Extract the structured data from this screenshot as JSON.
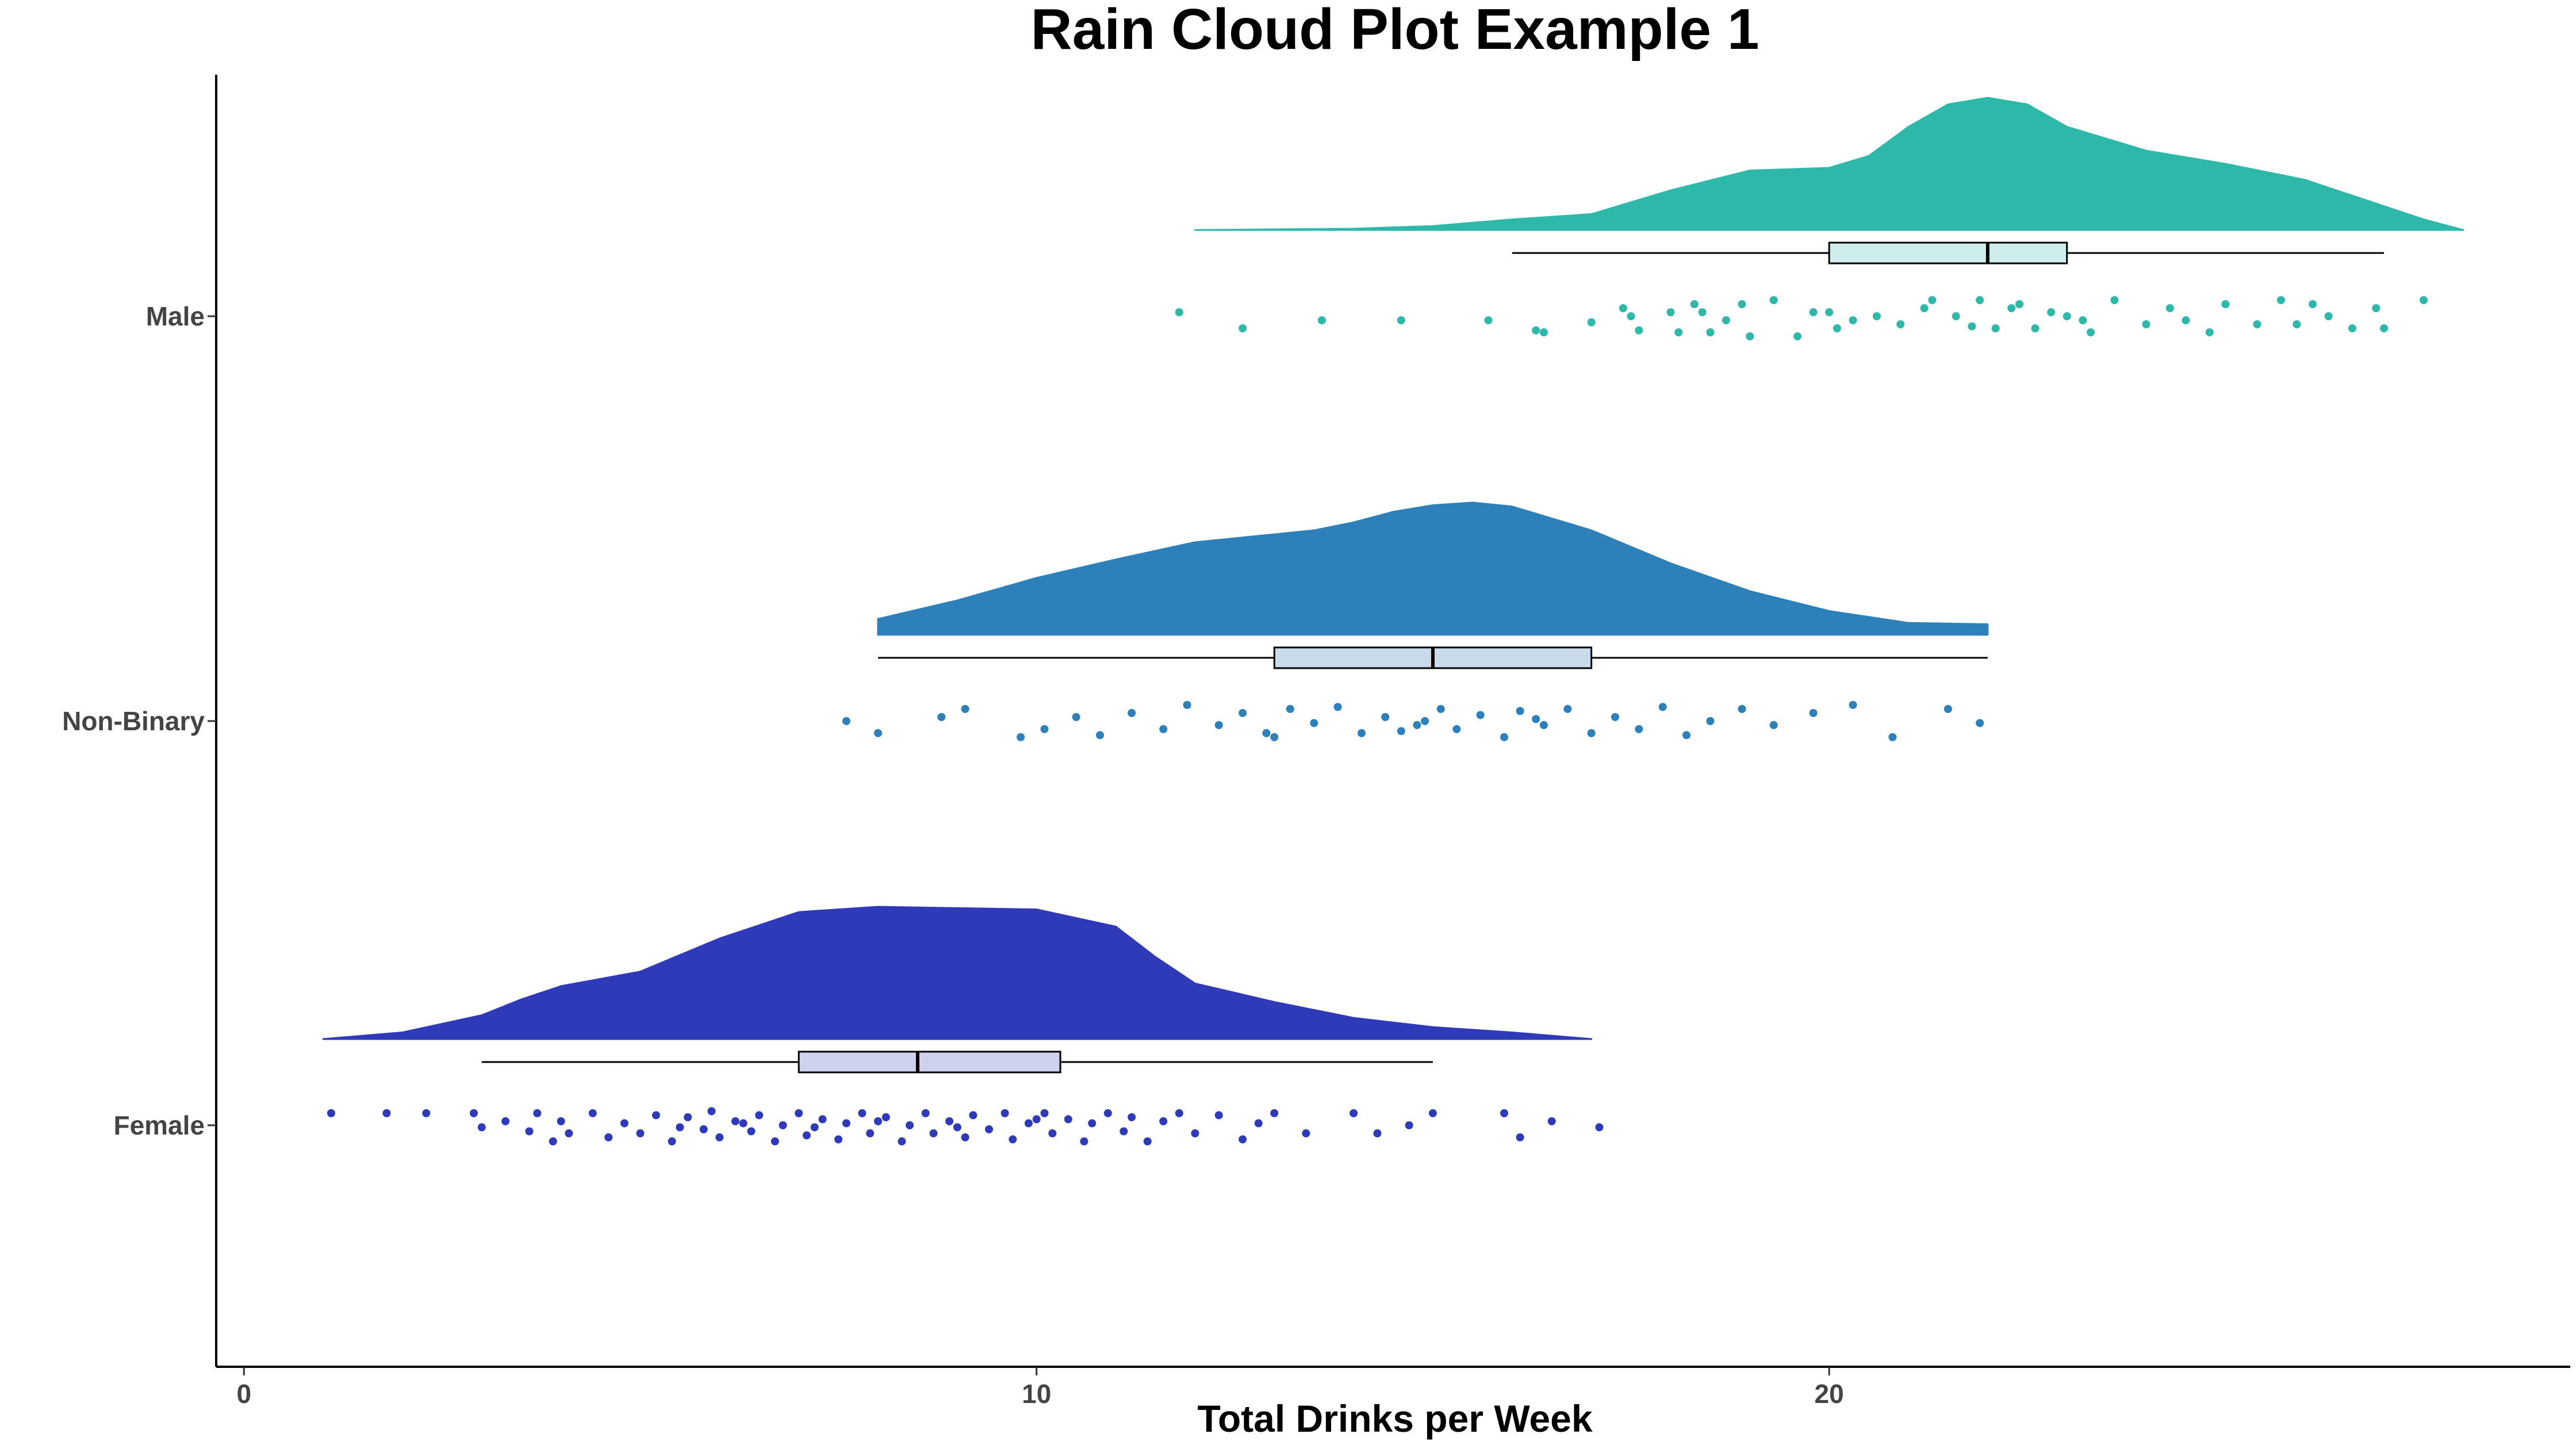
{
  "chart_data": {
    "type": "raincloud",
    "title": "Rain Cloud Plot Example 1",
    "xlabel": "Total Drinks per Week",
    "ylabel": "",
    "xlim": [
      -0.35,
      29.35
    ],
    "xticks": [
      0,
      10,
      20
    ],
    "grid": false,
    "legend": "none",
    "series": [
      {
        "name": "Male",
        "color": "#2eb8a9",
        "box_fill": "#cdeeed",
        "density_range": [
          12.0,
          28.0
        ],
        "density": [
          [
            12.0,
            0.0
          ],
          [
            14.0,
            0.01
          ],
          [
            15.0,
            0.03
          ],
          [
            16.0,
            0.08
          ],
          [
            17.0,
            0.12
          ],
          [
            18.0,
            0.3
          ],
          [
            19.0,
            0.45
          ],
          [
            20.0,
            0.47
          ],
          [
            20.5,
            0.56
          ],
          [
            21.0,
            0.78
          ],
          [
            21.5,
            0.95
          ],
          [
            22.0,
            1.0
          ],
          [
            22.5,
            0.95
          ],
          [
            23.0,
            0.78
          ],
          [
            24.0,
            0.6
          ],
          [
            25.0,
            0.5
          ],
          [
            26.0,
            0.38
          ],
          [
            27.0,
            0.18
          ],
          [
            27.5,
            0.08
          ],
          [
            28.0,
            0.0
          ]
        ],
        "box": {
          "whisker_low": 16.0,
          "q1": 20.0,
          "median": 22.0,
          "q3": 23.0,
          "whisker_high": 27.0
        },
        "points": [
          [
            11.8,
            0.1
          ],
          [
            12.6,
            -0.3
          ],
          [
            13.6,
            -0.1
          ],
          [
            14.6,
            -0.1
          ],
          [
            15.7,
            -0.1
          ],
          [
            16.3,
            -0.35
          ],
          [
            16.4,
            -0.4
          ],
          [
            17.0,
            -0.15
          ],
          [
            17.4,
            0.2
          ],
          [
            17.5,
            0.0
          ],
          [
            17.6,
            -0.35
          ],
          [
            18.1,
            -0.4
          ],
          [
            18.3,
            0.3
          ],
          [
            18.0,
            0.1
          ],
          [
            18.4,
            0.1
          ],
          [
            18.5,
            -0.4
          ],
          [
            18.7,
            -0.1
          ],
          [
            18.9,
            0.3
          ],
          [
            19.0,
            -0.5
          ],
          [
            19.3,
            0.4
          ],
          [
            19.6,
            -0.5
          ],
          [
            19.8,
            0.1
          ],
          [
            20.0,
            0.1
          ],
          [
            20.1,
            -0.3
          ],
          [
            20.3,
            -0.1
          ],
          [
            20.6,
            0.0
          ],
          [
            20.9,
            -0.2
          ],
          [
            21.3,
            0.4
          ],
          [
            21.6,
            0.0
          ],
          [
            21.8,
            -0.25
          ],
          [
            21.9,
            0.4
          ],
          [
            22.1,
            -0.3
          ],
          [
            22.3,
            0.2
          ],
          [
            22.6,
            -0.3
          ],
          [
            22.8,
            0.1
          ],
          [
            23.0,
            0.0
          ],
          [
            23.3,
            -0.4
          ],
          [
            23.6,
            0.4
          ],
          [
            24.0,
            -0.2
          ],
          [
            24.3,
            0.2
          ],
          [
            24.5,
            -0.1
          ],
          [
            24.8,
            -0.4
          ],
          [
            25.0,
            0.3
          ],
          [
            25.4,
            -0.2
          ],
          [
            25.7,
            0.4
          ],
          [
            25.9,
            -0.2
          ],
          [
            26.1,
            0.3
          ],
          [
            26.3,
            0.0
          ],
          [
            26.6,
            -0.3
          ],
          [
            26.9,
            0.2
          ],
          [
            27.5,
            0.4
          ],
          [
            27.0,
            -0.3
          ],
          [
            21.2,
            0.2
          ],
          [
            22.4,
            0.3
          ],
          [
            23.2,
            -0.1
          ]
        ]
      },
      {
        "name": "Non-Binary",
        "color": "#2d80b9",
        "box_fill": "#c9dbeb",
        "density_range": [
          8.0,
          22.0
        ],
        "density": [
          [
            8.0,
            0.12
          ],
          [
            9.0,
            0.26
          ],
          [
            10.0,
            0.43
          ],
          [
            11.0,
            0.57
          ],
          [
            12.0,
            0.7
          ],
          [
            13.0,
            0.76
          ],
          [
            13.5,
            0.79
          ],
          [
            14.0,
            0.85
          ],
          [
            14.5,
            0.93
          ],
          [
            15.0,
            0.98
          ],
          [
            15.5,
            1.0
          ],
          [
            16.0,
            0.97
          ],
          [
            17.0,
            0.79
          ],
          [
            18.0,
            0.54
          ],
          [
            19.0,
            0.33
          ],
          [
            20.0,
            0.18
          ],
          [
            21.0,
            0.09
          ],
          [
            22.0,
            0.08
          ]
        ],
        "box": {
          "whisker_low": 8.0,
          "q1": 13.0,
          "median": 15.0,
          "q3": 17.0,
          "whisker_high": 22.0
        },
        "points": [
          [
            7.6,
            0.0
          ],
          [
            8.0,
            -0.3
          ],
          [
            8.8,
            0.1
          ],
          [
            9.1,
            0.3
          ],
          [
            9.8,
            -0.4
          ],
          [
            10.1,
            -0.2
          ],
          [
            10.5,
            0.1
          ],
          [
            10.8,
            -0.35
          ],
          [
            11.2,
            0.2
          ],
          [
            11.6,
            -0.2
          ],
          [
            11.9,
            0.4
          ],
          [
            12.3,
            -0.1
          ],
          [
            12.6,
            0.2
          ],
          [
            12.9,
            -0.3
          ],
          [
            13.2,
            0.3
          ],
          [
            13.5,
            -0.05
          ],
          [
            13.8,
            0.35
          ],
          [
            14.1,
            -0.3
          ],
          [
            14.4,
            0.1
          ],
          [
            14.6,
            -0.25
          ],
          [
            14.9,
            0.0
          ],
          [
            15.1,
            0.3
          ],
          [
            15.3,
            -0.2
          ],
          [
            15.6,
            0.15
          ],
          [
            15.9,
            -0.4
          ],
          [
            16.1,
            0.25
          ],
          [
            16.4,
            -0.1
          ],
          [
            16.7,
            0.3
          ],
          [
            17.0,
            -0.3
          ],
          [
            17.3,
            0.1
          ],
          [
            17.6,
            -0.2
          ],
          [
            17.9,
            0.35
          ],
          [
            18.2,
            -0.35
          ],
          [
            18.5,
            0.0
          ],
          [
            18.9,
            0.3
          ],
          [
            19.3,
            -0.1
          ],
          [
            19.8,
            0.2
          ],
          [
            20.3,
            0.4
          ],
          [
            20.8,
            -0.4
          ],
          [
            21.5,
            0.3
          ],
          [
            21.9,
            -0.05
          ],
          [
            14.8,
            -0.1
          ],
          [
            16.3,
            0.05
          ],
          [
            13.0,
            -0.4
          ]
        ]
      },
      {
        "name": "Female",
        "color": "#2e3ab8",
        "box_fill": "#cfd2ee",
        "density_range": [
          1.0,
          17.0
        ],
        "density": [
          [
            1.0,
            0.0
          ],
          [
            2.0,
            0.05
          ],
          [
            3.0,
            0.18
          ],
          [
            3.5,
            0.3
          ],
          [
            4.0,
            0.4
          ],
          [
            5.0,
            0.51
          ],
          [
            6.0,
            0.76
          ],
          [
            7.0,
            0.96
          ],
          [
            8.0,
            1.0
          ],
          [
            9.0,
            0.99
          ],
          [
            10.0,
            0.98
          ],
          [
            11.0,
            0.85
          ],
          [
            11.5,
            0.62
          ],
          [
            12.0,
            0.42
          ],
          [
            13.0,
            0.28
          ],
          [
            14.0,
            0.16
          ],
          [
            15.0,
            0.09
          ],
          [
            16.0,
            0.05
          ],
          [
            17.0,
            0.0
          ]
        ],
        "box": {
          "whisker_low": 3.0,
          "q1": 7.0,
          "median": 8.5,
          "q3": 10.3,
          "whisker_high": 15.0
        },
        "points": [
          [
            1.1,
            0.3
          ],
          [
            1.8,
            0.3
          ],
          [
            2.3,
            0.3
          ],
          [
            2.9,
            0.3
          ],
          [
            3.0,
            -0.05
          ],
          [
            3.3,
            0.1
          ],
          [
            3.6,
            -0.15
          ],
          [
            3.7,
            0.3
          ],
          [
            3.9,
            -0.4
          ],
          [
            4.0,
            0.1
          ],
          [
            4.1,
            -0.2
          ],
          [
            4.4,
            0.3
          ],
          [
            4.6,
            -0.3
          ],
          [
            4.8,
            0.05
          ],
          [
            5.0,
            -0.2
          ],
          [
            5.2,
            0.25
          ],
          [
            5.4,
            -0.4
          ],
          [
            5.6,
            0.2
          ],
          [
            5.8,
            -0.1
          ],
          [
            5.9,
            0.35
          ],
          [
            6.0,
            -0.3
          ],
          [
            6.2,
            0.1
          ],
          [
            6.4,
            -0.15
          ],
          [
            6.5,
            0.25
          ],
          [
            6.7,
            -0.4
          ],
          [
            6.8,
            0.0
          ],
          [
            7.0,
            0.3
          ],
          [
            7.1,
            -0.25
          ],
          [
            7.3,
            0.15
          ],
          [
            7.5,
            -0.35
          ],
          [
            7.6,
            0.05
          ],
          [
            7.8,
            0.3
          ],
          [
            7.9,
            -0.2
          ],
          [
            8.1,
            0.2
          ],
          [
            8.3,
            -0.4
          ],
          [
            8.4,
            0.0
          ],
          [
            8.6,
            0.3
          ],
          [
            8.7,
            -0.2
          ],
          [
            8.9,
            0.1
          ],
          [
            9.1,
            -0.3
          ],
          [
            9.2,
            0.25
          ],
          [
            9.4,
            -0.1
          ],
          [
            9.6,
            0.3
          ],
          [
            9.7,
            -0.35
          ],
          [
            9.9,
            0.05
          ],
          [
            10.1,
            0.3
          ],
          [
            10.2,
            -0.2
          ],
          [
            10.4,
            0.15
          ],
          [
            10.6,
            -0.4
          ],
          [
            10.7,
            0.05
          ],
          [
            10.9,
            0.3
          ],
          [
            11.1,
            -0.15
          ],
          [
            11.2,
            0.2
          ],
          [
            11.4,
            -0.4
          ],
          [
            11.6,
            0.1
          ],
          [
            11.8,
            0.3
          ],
          [
            12.0,
            -0.2
          ],
          [
            12.3,
            0.25
          ],
          [
            12.6,
            -0.35
          ],
          [
            12.8,
            0.05
          ],
          [
            13.0,
            0.3
          ],
          [
            13.4,
            -0.2
          ],
          [
            14.0,
            0.3
          ],
          [
            14.3,
            -0.2
          ],
          [
            14.7,
            0.0
          ],
          [
            15.0,
            0.3
          ],
          [
            15.9,
            0.3
          ],
          [
            16.1,
            -0.3
          ],
          [
            16.5,
            0.1
          ],
          [
            17.1,
            -0.05
          ],
          [
            6.3,
            0.05
          ],
          [
            7.2,
            -0.05
          ],
          [
            8.0,
            0.1
          ],
          [
            9.0,
            -0.05
          ],
          [
            10.0,
            0.15
          ],
          [
            5.5,
            -0.05
          ]
        ]
      }
    ]
  }
}
